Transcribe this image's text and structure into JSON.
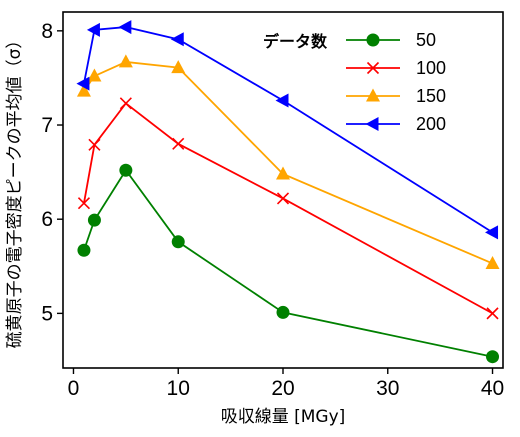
{
  "chart_data": {
    "type": "line",
    "xlabel": "吸収線量 [MGy]",
    "ylabel": "硫黄原子の電子密度ピークの平均値（σ）",
    "xlim": [
      -1,
      41
    ],
    "ylim": [
      4.42,
      8.2
    ],
    "x_ticks": [
      0,
      10,
      20,
      30,
      40
    ],
    "y_ticks": [
      5,
      6,
      7,
      8
    ],
    "grid": false,
    "legend": {
      "title": "データ数",
      "placement": "top-right"
    },
    "series": [
      {
        "name": "50",
        "color": "#008000",
        "marker": "circle",
        "x": [
          1,
          2,
          5,
          10,
          20,
          40
        ],
        "y": [
          5.67,
          5.99,
          6.52,
          5.76,
          5.01,
          4.54
        ]
      },
      {
        "name": "100",
        "color": "#ff0000",
        "marker": "x",
        "x": [
          1,
          2,
          5,
          10,
          20,
          40
        ],
        "y": [
          6.17,
          6.79,
          7.23,
          6.8,
          6.22,
          5.0
        ]
      },
      {
        "name": "150",
        "color": "#ffa500",
        "marker": "triangle-up",
        "x": [
          1,
          2,
          5,
          10,
          20,
          40
        ],
        "y": [
          7.36,
          7.52,
          7.67,
          7.61,
          6.48,
          5.53
        ]
      },
      {
        "name": "200",
        "color": "#0000ff",
        "marker": "triangle-left",
        "x": [
          1,
          2,
          5,
          10,
          20,
          40
        ],
        "y": [
          7.44,
          8.01,
          8.04,
          7.91,
          7.26,
          5.86
        ]
      }
    ]
  }
}
